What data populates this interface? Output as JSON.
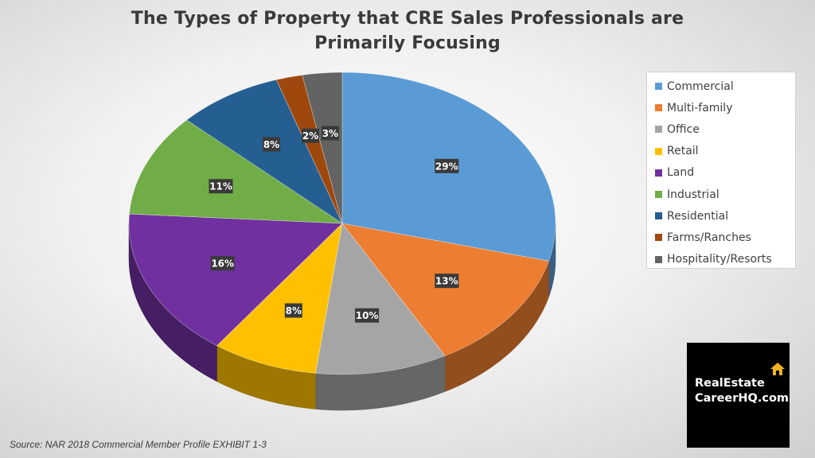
{
  "chart_data": {
    "type": "pie",
    "title_lines": [
      "The Types of Property that CRE Sales Professionals are",
      "Primarily Focusing"
    ],
    "categories": [
      "Commercial",
      "Multi-family",
      "Office",
      "Retail",
      "Land",
      "Industrial",
      "Residential",
      "Farms/Ranches",
      "Hospitality/Resorts"
    ],
    "values": [
      29,
      13,
      10,
      8,
      16,
      11,
      8,
      2,
      3
    ],
    "data_labels": [
      "29%",
      "13%",
      "10%",
      "8%",
      "16%",
      "11%",
      "8%",
      "2%",
      "3%"
    ],
    "colors": [
      "#5b9bd5",
      "#ed7d31",
      "#a5a5a5",
      "#ffc000",
      "#7030a0",
      "#70ad47",
      "#255e91",
      "#9e480e",
      "#636363"
    ],
    "legend_position": "right",
    "style": "3d-tilted-pie"
  },
  "source_text": "Source: NAR 2018 Commercial Member Profile EXHIBIT 1-3",
  "logo": {
    "line1": "RealEstate",
    "line2": "CareerHQ.com",
    "icon": "house-icon",
    "accent_color": "#f0b323"
  }
}
